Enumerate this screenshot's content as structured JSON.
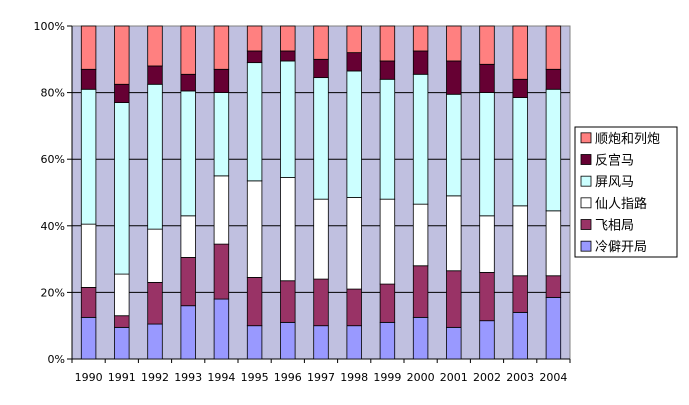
{
  "chart_data": {
    "type": "bar",
    "stacked": true,
    "percent_stacked": true,
    "categories": [
      "1990",
      "1991",
      "1992",
      "1993",
      "1994",
      "1995",
      "1996",
      "1997",
      "1998",
      "1999",
      "2000",
      "2001",
      "2002",
      "2003",
      "2004"
    ],
    "series": [
      {
        "name": "冷僻开局",
        "color": "#9999ff",
        "values": [
          12.5,
          9.5,
          10.5,
          16,
          18,
          10,
          11,
          10,
          10,
          11,
          12.5,
          9.5,
          11.5,
          14,
          18.5
        ]
      },
      {
        "name": "飞相局",
        "color": "#993366",
        "values": [
          9,
          3.5,
          12.5,
          14.5,
          16.5,
          14.5,
          12.5,
          14,
          11,
          11.5,
          15.5,
          17,
          14.5,
          11,
          6.5
        ]
      },
      {
        "name": "仙人指路",
        "color": "#ffffff",
        "values": [
          19,
          12.5,
          16,
          12.5,
          20.5,
          29,
          31,
          24,
          27.5,
          25.5,
          18.5,
          22.5,
          17,
          21,
          19.5
        ]
      },
      {
        "name": "屏风马",
        "color": "#ccffff",
        "values": [
          40.5,
          51.5,
          43.5,
          37.5,
          25,
          35.5,
          35,
          36.5,
          38,
          36,
          39,
          30.5,
          37,
          32.5,
          36.5
        ]
      },
      {
        "name": "反宫马",
        "color": "#660033",
        "values": [
          6,
          5.5,
          5.5,
          5,
          7,
          3.5,
          3,
          5.5,
          5.5,
          5.5,
          7,
          10,
          8.5,
          5.5,
          6
        ]
      },
      {
        "name": "顺炮和列炮",
        "color": "#ff8080",
        "values": [
          13,
          17.5,
          12,
          14.5,
          13,
          7.5,
          7.5,
          10,
          8,
          10.5,
          7.5,
          10.5,
          11.5,
          16,
          13
        ]
      }
    ],
    "ylim": [
      0,
      100
    ],
    "y_ticks": [
      "0%",
      "20%",
      "40%",
      "60%",
      "80%",
      "100%"
    ],
    "grid": true,
    "plot_background": "#c0c0e0",
    "legend_position": "right"
  }
}
